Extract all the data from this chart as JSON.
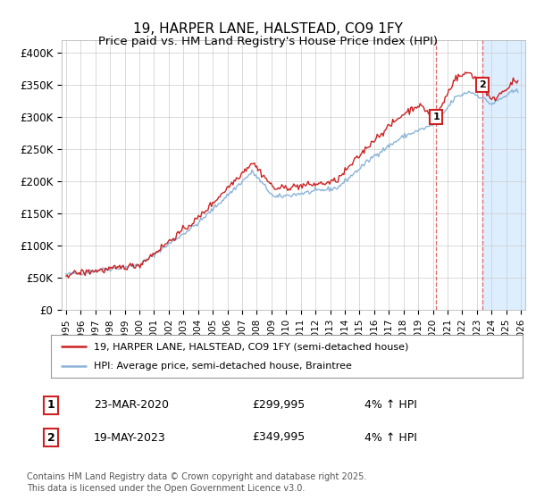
{
  "title": "19, HARPER LANE, HALSTEAD, CO9 1FY",
  "subtitle": "Price paid vs. HM Land Registry's House Price Index (HPI)",
  "ylabel_ticks": [
    "£0",
    "£50K",
    "£100K",
    "£150K",
    "£200K",
    "£250K",
    "£300K",
    "£350K",
    "£400K"
  ],
  "ytick_values": [
    0,
    50000,
    100000,
    150000,
    200000,
    250000,
    300000,
    350000,
    400000
  ],
  "ylim": [
    0,
    420000
  ],
  "xlim_start": 1994.7,
  "xlim_end": 2026.3,
  "xticks": [
    1995,
    1996,
    1997,
    1998,
    1999,
    2000,
    2001,
    2002,
    2003,
    2004,
    2005,
    2006,
    2007,
    2008,
    2009,
    2010,
    2011,
    2012,
    2013,
    2014,
    2015,
    2016,
    2017,
    2018,
    2019,
    2020,
    2021,
    2022,
    2023,
    2024,
    2025,
    2026
  ],
  "hpi_color": "#8ab4d8",
  "price_color": "#cc2222",
  "vline_color": "#dd6666",
  "marker1_x": 2020.22,
  "marker1_y": 299995,
  "marker2_x": 2023.38,
  "marker2_y": 349995,
  "vline1_x": 2020.22,
  "vline2_x": 2023.38,
  "shade_start": 2023.38,
  "shade_end": 2026.3,
  "legend_price": "19, HARPER LANE, HALSTEAD, CO9 1FY (semi-detached house)",
  "legend_hpi": "HPI: Average price, semi-detached house, Braintree",
  "footnote": "Contains HM Land Registry data © Crown copyright and database right 2025.\nThis data is licensed under the Open Government Licence v3.0.",
  "bg_color": "#ffffff",
  "plot_bg_color": "#ffffff",
  "grid_color": "#cccccc",
  "shade_color": "#ddeeff"
}
